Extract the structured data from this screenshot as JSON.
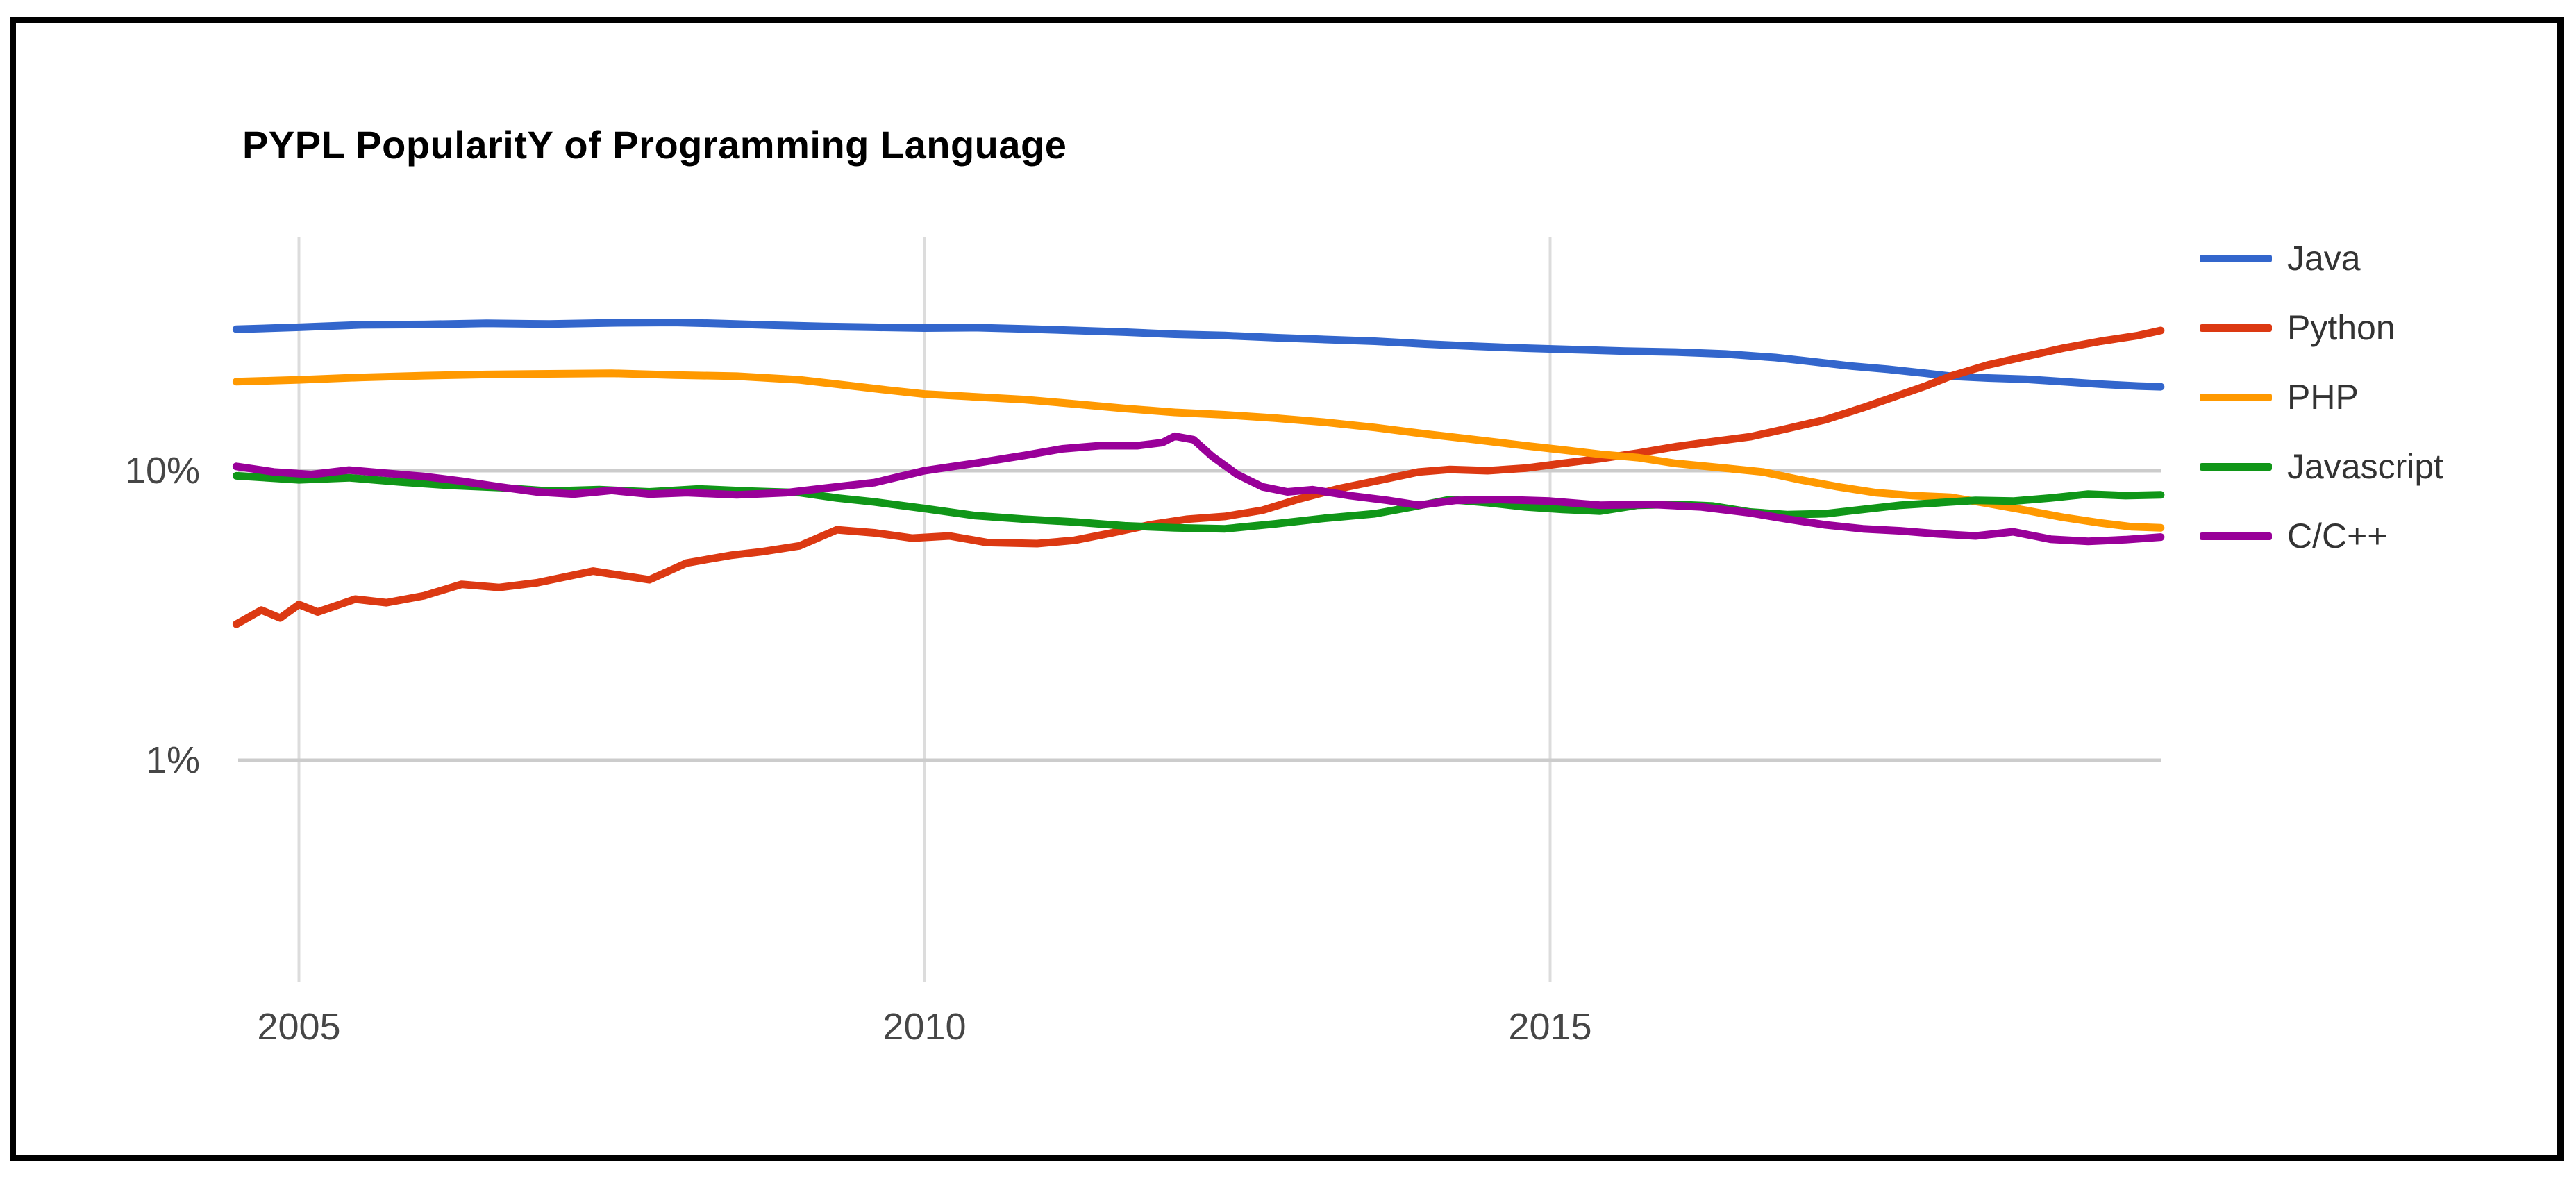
{
  "frame": {
    "border_color": "#000000",
    "background": "#ffffff"
  },
  "chart_data": {
    "type": "line",
    "title": "PYPL PopularitY of Programming Language",
    "xlabel": "",
    "ylabel": "",
    "x_axis": {
      "range": [
        2004.45,
        2019.9
      ],
      "ticks": [
        {
          "label": "2005",
          "year": 2005
        },
        {
          "label": "2010",
          "year": 2010
        },
        {
          "label": "2015",
          "year": 2015
        }
      ]
    },
    "y_axis": {
      "scale": "log",
      "unit": "percent share",
      "ticks": [
        {
          "label": "10%",
          "value": 10
        },
        {
          "label": "1%",
          "value": 1
        }
      ]
    },
    "grid": {
      "v_color": "#dcdcdc",
      "h_color": "#cccccc"
    },
    "legend": {
      "position": "right"
    },
    "series": [
      {
        "name": "Java",
        "color": "#3366CC",
        "points": [
          [
            2004.5,
            30.8
          ],
          [
            2005,
            31.3
          ],
          [
            2005.5,
            31.9
          ],
          [
            2006,
            32.0
          ],
          [
            2006.5,
            32.3
          ],
          [
            2007,
            32.1
          ],
          [
            2007.5,
            32.4
          ],
          [
            2008,
            32.5
          ],
          [
            2008.4,
            32.2
          ],
          [
            2008.8,
            31.8
          ],
          [
            2009.2,
            31.5
          ],
          [
            2009.6,
            31.3
          ],
          [
            2010,
            31.1
          ],
          [
            2010.4,
            31.2
          ],
          [
            2010.8,
            30.9
          ],
          [
            2011.2,
            30.5
          ],
          [
            2011.6,
            30.1
          ],
          [
            2012,
            29.6
          ],
          [
            2012.4,
            29.3
          ],
          [
            2012.8,
            28.8
          ],
          [
            2013.2,
            28.4
          ],
          [
            2013.6,
            28.0
          ],
          [
            2014,
            27.4
          ],
          [
            2014.4,
            26.9
          ],
          [
            2014.8,
            26.5
          ],
          [
            2015.2,
            26.2
          ],
          [
            2015.6,
            25.9
          ],
          [
            2016,
            25.7
          ],
          [
            2016.4,
            25.3
          ],
          [
            2016.8,
            24.6
          ],
          [
            2017.1,
            23.8
          ],
          [
            2017.4,
            23.0
          ],
          [
            2017.7,
            22.4
          ],
          [
            2018,
            21.7
          ],
          [
            2018.2,
            21.2
          ],
          [
            2018.5,
            20.9
          ],
          [
            2018.8,
            20.7
          ],
          [
            2019.1,
            20.3
          ],
          [
            2019.4,
            19.9
          ],
          [
            2019.7,
            19.6
          ],
          [
            2019.88,
            19.5
          ]
        ]
      },
      {
        "name": "Python",
        "color": "#DC3912",
        "points": [
          [
            2004.5,
            2.95
          ],
          [
            2004.7,
            3.3
          ],
          [
            2004.85,
            3.1
          ],
          [
            2005.0,
            3.45
          ],
          [
            2005.15,
            3.25
          ],
          [
            2005.45,
            3.6
          ],
          [
            2005.7,
            3.5
          ],
          [
            2006,
            3.7
          ],
          [
            2006.3,
            4.05
          ],
          [
            2006.6,
            3.95
          ],
          [
            2006.9,
            4.1
          ],
          [
            2007.35,
            4.5
          ],
          [
            2007.8,
            4.2
          ],
          [
            2008.1,
            4.8
          ],
          [
            2008.45,
            5.1
          ],
          [
            2008.7,
            5.25
          ],
          [
            2009.0,
            5.5
          ],
          [
            2009.3,
            6.25
          ],
          [
            2009.6,
            6.1
          ],
          [
            2009.9,
            5.85
          ],
          [
            2010.2,
            5.95
          ],
          [
            2010.5,
            5.65
          ],
          [
            2010.9,
            5.6
          ],
          [
            2011.2,
            5.75
          ],
          [
            2011.5,
            6.1
          ],
          [
            2011.8,
            6.5
          ],
          [
            2012.1,
            6.8
          ],
          [
            2012.4,
            6.95
          ],
          [
            2012.7,
            7.3
          ],
          [
            2013.0,
            8.0
          ],
          [
            2013.3,
            8.65
          ],
          [
            2013.6,
            9.2
          ],
          [
            2013.95,
            9.9
          ],
          [
            2014.2,
            10.1
          ],
          [
            2014.5,
            10.0
          ],
          [
            2014.8,
            10.2
          ],
          [
            2015.1,
            10.6
          ],
          [
            2015.4,
            11.0
          ],
          [
            2015.7,
            11.5
          ],
          [
            2016,
            12.1
          ],
          [
            2016.3,
            12.6
          ],
          [
            2016.6,
            13.1
          ],
          [
            2016.9,
            14.0
          ],
          [
            2017.2,
            15.0
          ],
          [
            2017.5,
            16.5
          ],
          [
            2017.8,
            18.3
          ],
          [
            2018.0,
            19.6
          ],
          [
            2018.2,
            21.2
          ],
          [
            2018.5,
            23.2
          ],
          [
            2018.8,
            24.8
          ],
          [
            2019.1,
            26.5
          ],
          [
            2019.4,
            28.0
          ],
          [
            2019.7,
            29.3
          ],
          [
            2019.88,
            30.5
          ]
        ]
      },
      {
        "name": "PHP",
        "color": "#FF9900",
        "points": [
          [
            2004.5,
            20.3
          ],
          [
            2005,
            20.6
          ],
          [
            2005.5,
            21.0
          ],
          [
            2006,
            21.3
          ],
          [
            2006.5,
            21.5
          ],
          [
            2007,
            21.6
          ],
          [
            2007.5,
            21.7
          ],
          [
            2008,
            21.4
          ],
          [
            2008.5,
            21.2
          ],
          [
            2009,
            20.6
          ],
          [
            2009.3,
            19.9
          ],
          [
            2009.7,
            19.0
          ],
          [
            2010,
            18.4
          ],
          [
            2010.4,
            18.0
          ],
          [
            2010.8,
            17.6
          ],
          [
            2011.2,
            17.0
          ],
          [
            2011.6,
            16.4
          ],
          [
            2012,
            15.9
          ],
          [
            2012.4,
            15.6
          ],
          [
            2012.8,
            15.2
          ],
          [
            2013.2,
            14.7
          ],
          [
            2013.6,
            14.1
          ],
          [
            2014,
            13.4
          ],
          [
            2014.4,
            12.8
          ],
          [
            2014.8,
            12.2
          ],
          [
            2015.1,
            11.8
          ],
          [
            2015.4,
            11.4
          ],
          [
            2015.7,
            11.1
          ],
          [
            2016,
            10.6
          ],
          [
            2016.4,
            10.2
          ],
          [
            2016.7,
            9.9
          ],
          [
            2017,
            9.3
          ],
          [
            2017.3,
            8.8
          ],
          [
            2017.6,
            8.4
          ],
          [
            2017.9,
            8.2
          ],
          [
            2018.2,
            8.1
          ],
          [
            2018.5,
            7.7
          ],
          [
            2018.8,
            7.3
          ],
          [
            2019.1,
            6.9
          ],
          [
            2019.4,
            6.6
          ],
          [
            2019.65,
            6.4
          ],
          [
            2019.88,
            6.35
          ]
        ]
      },
      {
        "name": "Javascript",
        "color": "#109618",
        "points": [
          [
            2004.5,
            9.6
          ],
          [
            2005,
            9.3
          ],
          [
            2005.4,
            9.45
          ],
          [
            2005.8,
            9.15
          ],
          [
            2006.2,
            8.9
          ],
          [
            2006.6,
            8.75
          ],
          [
            2007,
            8.5
          ],
          [
            2007.4,
            8.6
          ],
          [
            2007.8,
            8.45
          ],
          [
            2008.2,
            8.65
          ],
          [
            2008.6,
            8.5
          ],
          [
            2009,
            8.4
          ],
          [
            2009.3,
            8.05
          ],
          [
            2009.6,
            7.8
          ],
          [
            2010,
            7.4
          ],
          [
            2010.4,
            7.0
          ],
          [
            2010.8,
            6.8
          ],
          [
            2011.2,
            6.65
          ],
          [
            2011.6,
            6.45
          ],
          [
            2012,
            6.35
          ],
          [
            2012.4,
            6.3
          ],
          [
            2012.8,
            6.55
          ],
          [
            2013.2,
            6.85
          ],
          [
            2013.6,
            7.1
          ],
          [
            2013.9,
            7.5
          ],
          [
            2014.2,
            7.95
          ],
          [
            2014.5,
            7.75
          ],
          [
            2014.8,
            7.5
          ],
          [
            2015.1,
            7.35
          ],
          [
            2015.4,
            7.25
          ],
          [
            2015.7,
            7.6
          ],
          [
            2016,
            7.65
          ],
          [
            2016.3,
            7.55
          ],
          [
            2016.6,
            7.2
          ],
          [
            2016.9,
            7.05
          ],
          [
            2017.2,
            7.1
          ],
          [
            2017.5,
            7.35
          ],
          [
            2017.8,
            7.6
          ],
          [
            2018.1,
            7.75
          ],
          [
            2018.4,
            7.9
          ],
          [
            2018.7,
            7.85
          ],
          [
            2019,
            8.05
          ],
          [
            2019.3,
            8.3
          ],
          [
            2019.6,
            8.2
          ],
          [
            2019.88,
            8.25
          ]
        ]
      },
      {
        "name": "C/C++",
        "color": "#990099",
        "points": [
          [
            2004.5,
            10.35
          ],
          [
            2004.8,
            9.9
          ],
          [
            2005.1,
            9.7
          ],
          [
            2005.4,
            10.05
          ],
          [
            2005.7,
            9.8
          ],
          [
            2006,
            9.55
          ],
          [
            2006.3,
            9.2
          ],
          [
            2006.6,
            8.8
          ],
          [
            2006.9,
            8.45
          ],
          [
            2007.2,
            8.3
          ],
          [
            2007.5,
            8.55
          ],
          [
            2007.8,
            8.3
          ],
          [
            2008.1,
            8.4
          ],
          [
            2008.5,
            8.25
          ],
          [
            2008.9,
            8.4
          ],
          [
            2009.2,
            8.7
          ],
          [
            2009.6,
            9.1
          ],
          [
            2010,
            10.0
          ],
          [
            2010.4,
            10.6
          ],
          [
            2010.8,
            11.3
          ],
          [
            2011.1,
            11.9
          ],
          [
            2011.4,
            12.2
          ],
          [
            2011.7,
            12.2
          ],
          [
            2011.9,
            12.5
          ],
          [
            2012.0,
            13.15
          ],
          [
            2012.15,
            12.8
          ],
          [
            2012.3,
            11.2
          ],
          [
            2012.5,
            9.7
          ],
          [
            2012.7,
            8.8
          ],
          [
            2012.9,
            8.45
          ],
          [
            2013.1,
            8.6
          ],
          [
            2013.4,
            8.2
          ],
          [
            2013.7,
            7.9
          ],
          [
            2013.95,
            7.6
          ],
          [
            2014.25,
            7.9
          ],
          [
            2014.6,
            7.95
          ],
          [
            2015,
            7.85
          ],
          [
            2015.4,
            7.6
          ],
          [
            2015.8,
            7.65
          ],
          [
            2016.2,
            7.5
          ],
          [
            2016.6,
            7.15
          ],
          [
            2016.9,
            6.8
          ],
          [
            2017.2,
            6.5
          ],
          [
            2017.5,
            6.3
          ],
          [
            2017.8,
            6.2
          ],
          [
            2018.1,
            6.05
          ],
          [
            2018.4,
            5.95
          ],
          [
            2018.7,
            6.15
          ],
          [
            2019,
            5.8
          ],
          [
            2019.3,
            5.7
          ],
          [
            2019.6,
            5.78
          ],
          [
            2019.88,
            5.9
          ]
        ]
      }
    ]
  }
}
